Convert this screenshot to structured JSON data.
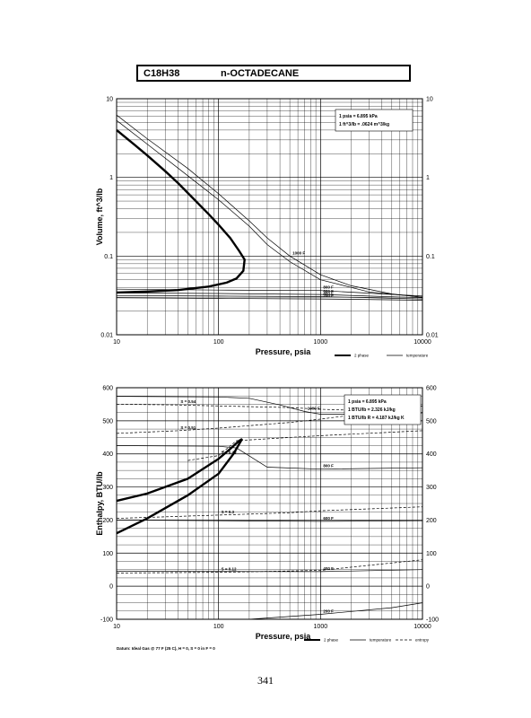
{
  "header": {
    "formula": "C18H38",
    "name": "n-OCTADECANE"
  },
  "page_number": "341",
  "chart_data": [
    {
      "type": "line",
      "ylabel": "Volume, ft^3/lb",
      "xlabel": "Pressure, psia",
      "xscale": "log",
      "yscale": "log",
      "xlim": [
        10,
        10000
      ],
      "ylim": [
        0.01,
        10
      ],
      "x_ticks": [
        "10",
        "100",
        "1000",
        "10000"
      ],
      "y_ticks": [
        "0.01",
        "0.1",
        "1",
        "10"
      ],
      "grid": true,
      "conversion_note": [
        "1 psia = 6.895 kPa",
        "1 ft^3/lb = .0624 m^3/kg"
      ],
      "legend": [
        {
          "name": "2 phase",
          "style": "bold"
        },
        {
          "name": "temperature",
          "style": "thin"
        }
      ],
      "series": [
        {
          "name": "2 phase",
          "style": "bold",
          "points": [
            [
              10,
              4.0
            ],
            [
              15,
              2.6
            ],
            [
              20,
              1.9
            ],
            [
              30,
              1.2
            ],
            [
              40,
              0.85
            ],
            [
              60,
              0.5
            ],
            [
              80,
              0.34
            ],
            [
              100,
              0.25
            ],
            [
              130,
              0.17
            ],
            [
              160,
              0.115
            ],
            [
              180,
              0.09
            ],
            [
              175,
              0.065
            ],
            [
              150,
              0.052
            ],
            [
              120,
              0.046
            ],
            [
              80,
              0.041
            ],
            [
              40,
              0.037
            ],
            [
              20,
              0.0355
            ],
            [
              10,
              0.0345
            ]
          ]
        },
        {
          "name": "temperature",
          "style": "thin",
          "label": "1000 F",
          "points": [
            [
              10,
              6.2
            ],
            [
              20,
              3.1
            ],
            [
              50,
              1.3
            ],
            [
              100,
              0.62
            ],
            [
              200,
              0.28
            ],
            [
              300,
              0.17
            ],
            [
              500,
              0.1
            ],
            [
              1000,
              0.058
            ],
            [
              2000,
              0.042
            ],
            [
              5000,
              0.033
            ],
            [
              10000,
              0.03
            ]
          ]
        },
        {
          "name": "temperature",
          "style": "thin",
          "points": [
            [
              10,
              5.3
            ],
            [
              20,
              2.65
            ],
            [
              50,
              1.05
            ],
            [
              100,
              0.52
            ],
            [
              200,
              0.24
            ],
            [
              300,
              0.14
            ],
            [
              500,
              0.085
            ],
            [
              1000,
              0.05
            ],
            [
              3000,
              0.035
            ],
            [
              10000,
              0.03
            ]
          ]
        },
        {
          "name": "temperature",
          "style": "thin",
          "label": "800 F",
          "points": [
            [
              10,
              0.038
            ],
            [
              100,
              0.037
            ],
            [
              1000,
              0.0365
            ],
            [
              10000,
              0.031
            ]
          ]
        },
        {
          "name": "temperature",
          "style": "thin",
          "label": "600 F",
          "points": [
            [
              10,
              0.034
            ],
            [
              100,
              0.0335
            ],
            [
              1000,
              0.0325
            ],
            [
              10000,
              0.0295
            ]
          ]
        },
        {
          "name": "temperature",
          "style": "thin",
          "label": "400 F",
          "points": [
            [
              10,
              0.0315
            ],
            [
              100,
              0.031
            ],
            [
              1000,
              0.0305
            ],
            [
              10000,
              0.0285
            ]
          ]
        },
        {
          "name": "temperature",
          "style": "thin",
          "label": "200 F",
          "points": [
            [
              10,
              0.0295
            ],
            [
              100,
              0.029
            ],
            [
              1000,
              0.0285
            ],
            [
              10000,
              0.0275
            ]
          ]
        }
      ]
    },
    {
      "type": "line",
      "ylabel": "Enthalpy, BTU/lb",
      "xlabel": "Pressure, psia",
      "xscale": "log",
      "yscale": "linear",
      "xlim": [
        10,
        10000
      ],
      "ylim": [
        -100,
        600
      ],
      "x_ticks": [
        "10",
        "100",
        "1000",
        "10000"
      ],
      "y_ticks": [
        "-100",
        "0",
        "100",
        "200",
        "300",
        "400",
        "500",
        "600"
      ],
      "grid": true,
      "conversion_note": [
        "1 psia = 6.895 kPa",
        "1 BTU/lb = 2.326 kJ/kg",
        "1 BTU/lb R = 4.187 kJ/kg K"
      ],
      "footnote": "Datum: Ideal Gas @ 77 F (25 C), H = 0, S = 0 in F = 0",
      "legend": [
        {
          "name": "2 phase",
          "style": "bold"
        },
        {
          "name": "temperature",
          "style": "thin"
        },
        {
          "name": "entropy",
          "style": "dashed"
        }
      ],
      "series": [
        {
          "name": "2 phase",
          "style": "bold",
          "points": [
            [
              10,
              160
            ],
            [
              20,
              205
            ],
            [
              50,
              275
            ],
            [
              100,
              340
            ],
            [
              140,
              400
            ],
            [
              170,
              445
            ],
            [
              160,
              440
            ],
            [
              130,
              415
            ],
            [
              100,
              385
            ],
            [
              50,
              325
            ],
            [
              20,
              280
            ],
            [
              10,
              258
            ]
          ]
        },
        {
          "name": "temperature",
          "style": "thin",
          "label": "1000 F",
          "points": [
            [
              10,
              574
            ],
            [
              100,
              572
            ],
            [
              200,
              568
            ],
            [
              400,
              548
            ],
            [
              700,
              528
            ],
            [
              1000,
              520
            ],
            [
              3000,
              520
            ],
            [
              10000,
              524
            ]
          ]
        },
        {
          "name": "temperature",
          "style": "thin",
          "label": "800 F",
          "points": [
            [
              10,
              425
            ],
            [
              100,
              423
            ],
            [
              150,
              418
            ],
            [
              300,
              360
            ],
            [
              1000,
              354
            ],
            [
              10000,
              358
            ]
          ]
        },
        {
          "name": "temperature",
          "style": "thin",
          "label": "600 F",
          "points": [
            [
              10,
              200
            ],
            [
              1000,
              196
            ],
            [
              10000,
              198
            ]
          ]
        },
        {
          "name": "temperature",
          "style": "thin",
          "label": "400 F",
          "points": [
            [
              10,
              45
            ],
            [
              1000,
              44
            ],
            [
              10000,
              50
            ]
          ]
        },
        {
          "name": "temperature",
          "style": "thin",
          "label": "200 F",
          "points": [
            [
              200,
              -100
            ],
            [
              1000,
              -85
            ],
            [
              5000,
              -65
            ],
            [
              10000,
              -50
            ]
          ]
        },
        {
          "name": "entropy",
          "style": "dashed",
          "label": "S = 0.54",
          "points": [
            [
              10,
              550
            ],
            [
              40,
              548
            ],
            [
              100,
              545
            ],
            [
              500,
              540
            ],
            [
              1000,
              535
            ],
            [
              10000,
              525
            ]
          ]
        },
        {
          "name": "entropy",
          "style": "dashed",
          "label": "S = 0.51",
          "points": [
            [
              10,
              462
            ],
            [
              40,
              470
            ],
            [
              100,
              478
            ],
            [
              500,
              495
            ],
            [
              1000,
              505
            ],
            [
              10000,
              545
            ]
          ]
        },
        {
          "name": "entropy",
          "style": "dashed",
          "label": "S = 0.49",
          "points": [
            [
              50,
              380
            ],
            [
              100,
              395
            ],
            [
              150,
              440
            ],
            [
              1000,
              455
            ],
            [
              10000,
              470
            ]
          ]
        },
        {
          "name": "entropy",
          "style": "dashed",
          "label": "S = 0.3",
          "points": [
            [
              10,
              205
            ],
            [
              100,
              215
            ],
            [
              500,
              222
            ],
            [
              1000,
              228
            ],
            [
              10000,
              240
            ]
          ]
        },
        {
          "name": "entropy",
          "style": "dashed",
          "label": "S = 0.12",
          "points": [
            [
              10,
              40
            ],
            [
              100,
              42
            ],
            [
              1000,
              48
            ],
            [
              10000,
              80
            ]
          ]
        }
      ]
    }
  ]
}
